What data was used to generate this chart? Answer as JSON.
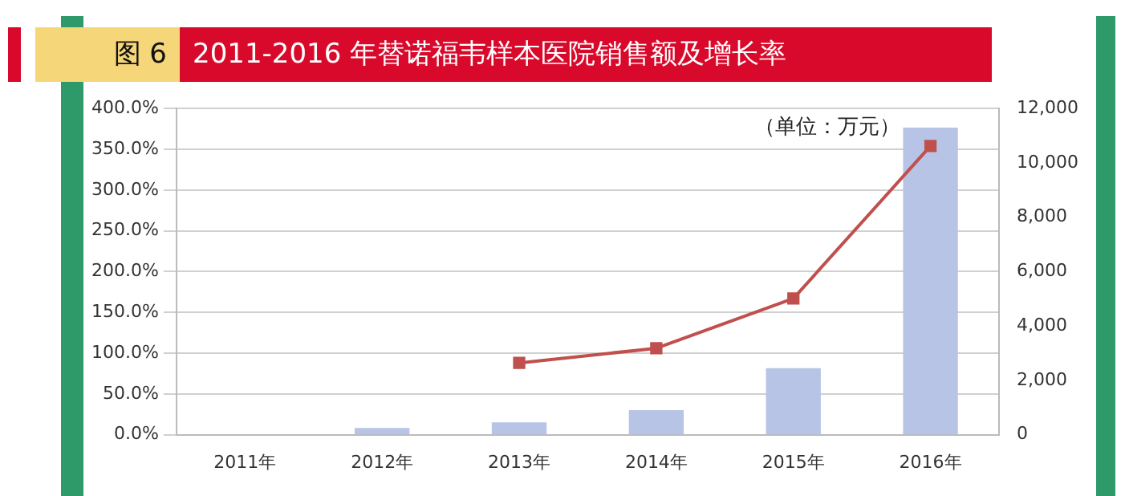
{
  "chart_data": {
    "type": "bar",
    "title": "2011-2016 年替诺福韦样本医院销售额及增长率",
    "annotations": [
      "图 6",
      "（单位：万元）"
    ],
    "categories": [
      "2011年",
      "2012年",
      "2013年",
      "2014年",
      "2015年",
      "2016年"
    ],
    "series": [
      {
        "axis": "y2",
        "color": "#b8c4e6",
        "values": [
          null,
          250,
          450,
          900,
          2450,
          11300
        ]
      },
      {
        "type": "line",
        "axis": "y",
        "color": "#c0504d",
        "values": [
          null,
          null,
          88,
          106,
          167,
          354
        ]
      }
    ],
    "ylim": [
      0,
      400
    ],
    "yticks": [
      {
        "value": 0,
        "label": "0.0%"
      },
      {
        "value": 50,
        "label": "50.0%"
      },
      {
        "value": 100,
        "label": "100.0%"
      },
      {
        "value": 150,
        "label": "150.0%"
      },
      {
        "value": 200,
        "label": "200.0%"
      },
      {
        "value": 250,
        "label": "250.0%"
      },
      {
        "value": 300,
        "label": "300.0%"
      },
      {
        "value": 350,
        "label": "350.0%"
      },
      {
        "value": 400,
        "label": "400.0%"
      }
    ],
    "y2lim": [
      0,
      12000
    ],
    "y2ticks": [
      {
        "value": 0,
        "label": "0"
      },
      {
        "value": 2000,
        "label": "2,000"
      },
      {
        "value": 4000,
        "label": "4,000"
      },
      {
        "value": 6000,
        "label": "6,000"
      },
      {
        "value": 8000,
        "label": "8,000"
      },
      {
        "value": 10000,
        "label": "10,000"
      },
      {
        "value": 12000,
        "label": "12,000"
      }
    ],
    "grid": "y",
    "legend": false,
    "marker": "square",
    "line_style": "solid"
  }
}
